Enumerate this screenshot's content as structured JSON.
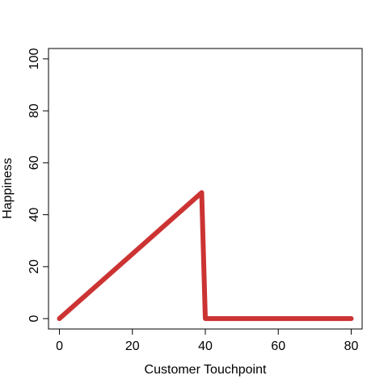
{
  "chart_data": {
    "type": "line",
    "title": "",
    "xlabel": "Customer Touchpoint",
    "ylabel": "Happiness",
    "xlim": [
      -3,
      83
    ],
    "ylim": [
      -4,
      104
    ],
    "xticks": [
      0,
      20,
      40,
      60,
      80
    ],
    "yticks": [
      0,
      20,
      40,
      60,
      80,
      100
    ],
    "grid": false,
    "series": [
      {
        "color": "#cc3333",
        "x": [
          0,
          39,
          40,
          80
        ],
        "y": [
          0,
          48.5,
          0,
          0
        ]
      }
    ]
  }
}
